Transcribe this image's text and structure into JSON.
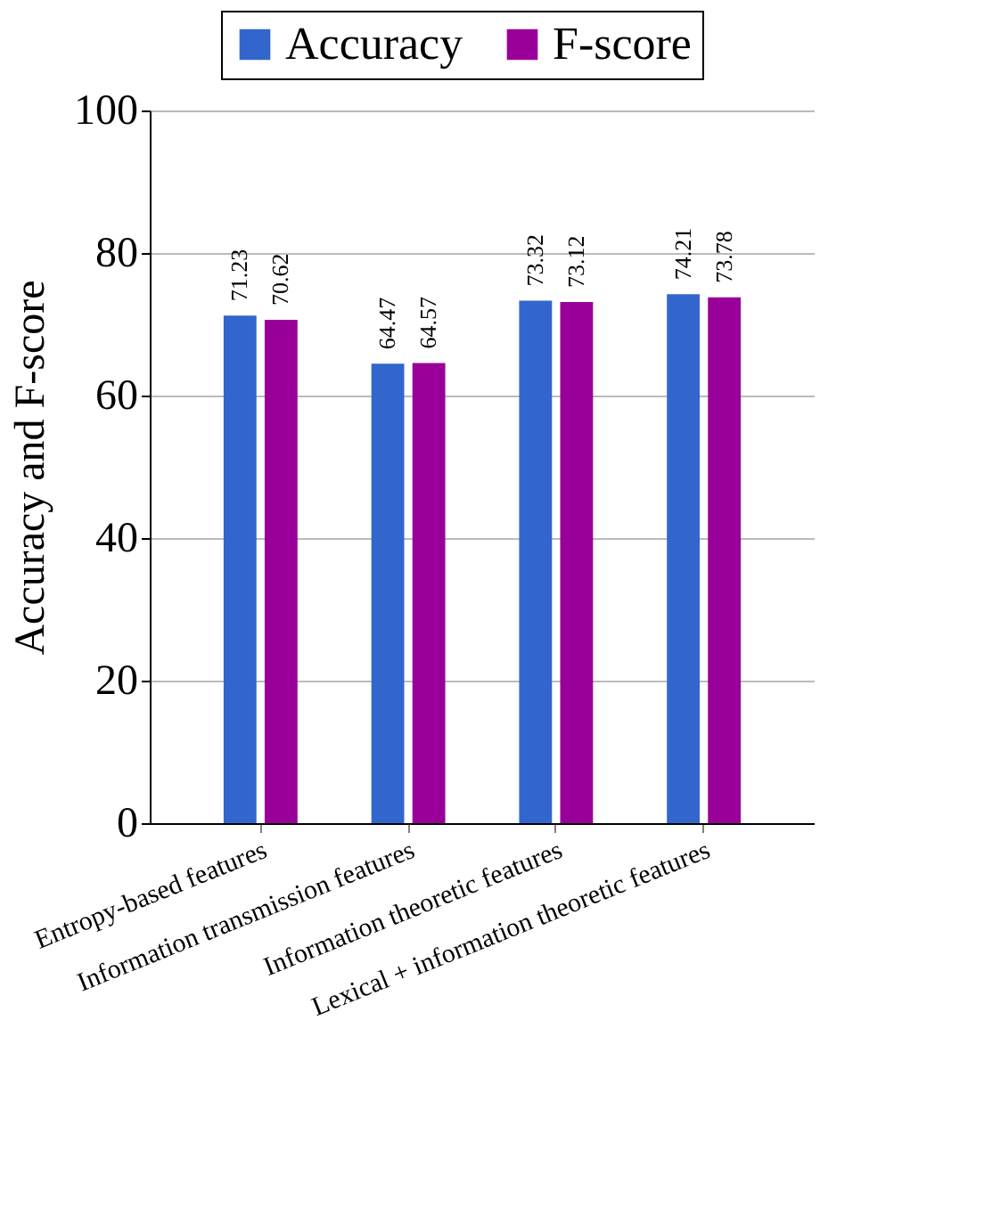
{
  "chart_data": {
    "type": "bar",
    "ylabel": "Accuracy and F-score",
    "categories": [
      "Entropy-based features",
      "Information transmission features",
      "Information theoretic features",
      "Lexical + information theoretic features"
    ],
    "series": [
      {
        "name": "Accuracy",
        "color": "#3366cc",
        "values": [
          71.23,
          64.47,
          73.32,
          74.21
        ]
      },
      {
        "name": "F-score",
        "color": "#990099",
        "values": [
          70.62,
          64.57,
          73.12,
          73.78
        ]
      }
    ],
    "ylim": [
      0,
      100
    ],
    "yticks": [
      0,
      20,
      40,
      60,
      80,
      100
    ],
    "grid": "y",
    "legend": "top right",
    "data_labels": true
  }
}
